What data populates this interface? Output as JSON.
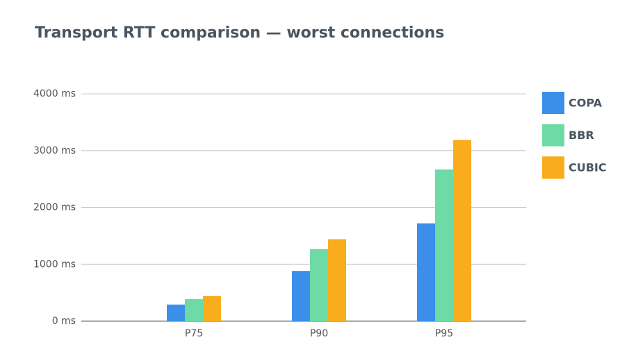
{
  "chart_data": {
    "type": "bar",
    "title": "Transport RTT comparison — worst connections",
    "categories": [
      "P75",
      "P90",
      "P95"
    ],
    "series": [
      {
        "name": "COPA",
        "color": "#3b8fe8",
        "values": [
          290,
          880,
          1720
        ]
      },
      {
        "name": "BBR",
        "color": "#6edaa5",
        "values": [
          390,
          1270,
          2670
        ]
      },
      {
        "name": "CUBIC",
        "color": "#f9ad1d",
        "values": [
          440,
          1440,
          3190
        ]
      }
    ],
    "ylim": [
      0,
      4000
    ],
    "yticks": [
      {
        "value": 0,
        "label": "0 ms"
      },
      {
        "value": 1000,
        "label": "1000 ms"
      },
      {
        "value": 2000,
        "label": "2000 ms"
      },
      {
        "value": 3000,
        "label": "3000 ms"
      },
      {
        "value": 4000,
        "label": "4000 ms"
      }
    ],
    "grid": true,
    "legend": "right"
  }
}
